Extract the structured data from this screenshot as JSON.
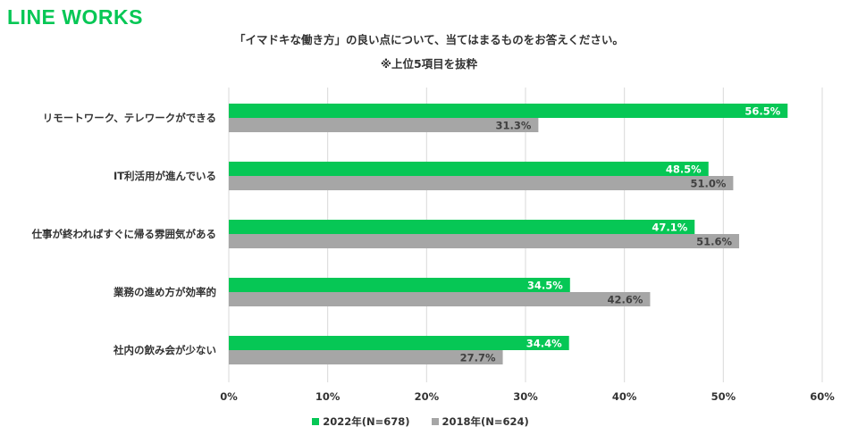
{
  "brand": "LINE WORKS",
  "chart_data": {
    "type": "bar",
    "orientation": "horizontal",
    "title": "「イマドキな働き方」の良い点について、当てはまるものをお答えください。",
    "subtitle": "※上位5項目を抜粋",
    "categories": [
      "リモートワーク、テレワークができる",
      "IT利活用が進んでいる",
      "仕事が終わればすぐに帰る雰囲気がある",
      "業務の進め方が効率的",
      "社内の飲み会が少ない"
    ],
    "series": [
      {
        "name": "2022年(N=678)",
        "color": "#06c755",
        "values": [
          56.5,
          48.5,
          47.1,
          34.5,
          34.4
        ]
      },
      {
        "name": "2018年(N=624)",
        "color": "#a6a6a6",
        "values": [
          31.3,
          51.0,
          51.6,
          42.6,
          27.7
        ]
      }
    ],
    "value_labels": [
      [
        "56.5%",
        "48.5%",
        "47.1%",
        "34.5%",
        "34.4%"
      ],
      [
        "31.3%",
        "51.0%",
        "51.6%",
        "42.6%",
        "27.7%"
      ]
    ],
    "xlim": [
      0,
      60
    ],
    "xticks": [
      0,
      10,
      20,
      30,
      40,
      50,
      60
    ],
    "xtick_labels": [
      "0%",
      "10%",
      "20%",
      "30%",
      "40%",
      "50%",
      "60%"
    ],
    "grid": "vertical",
    "legend_position": "bottom",
    "label_colors": [
      "#ffffff",
      "#404040"
    ],
    "grid_color": "#d9d9d9"
  }
}
